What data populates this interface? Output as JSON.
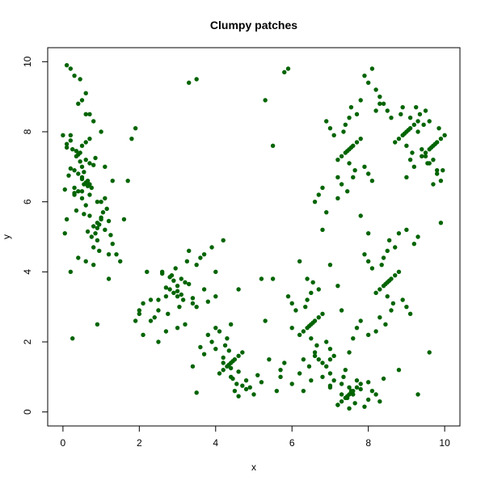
{
  "chart_data": {
    "type": "scatter",
    "title": "Clumpy patches",
    "xlabel": "x",
    "ylabel": "y",
    "xlim": [
      -0.4,
      10.4
    ],
    "ylim": [
      -0.4,
      10.4
    ],
    "x_ticks": [
      0,
      2,
      4,
      6,
      8,
      10
    ],
    "y_ticks": [
      0,
      2,
      4,
      6,
      8,
      10
    ],
    "grid": false,
    "legend": "none",
    "point_color": "#006400",
    "series": [
      {
        "x": [
          0.5,
          0.3,
          0.7,
          0.4,
          0.6,
          0.2,
          0.8,
          0.5,
          0.35,
          0.65,
          0.45,
          0.55,
          0.25,
          0.75,
          0.5,
          0.4,
          0.6,
          0.3,
          0.7,
          0.5,
          0.2,
          0.9,
          0.55,
          0.45,
          0.15,
          0.85,
          0.5,
          0.4,
          0.6,
          0.35,
          0.65,
          0.1,
          0.05,
          0.1,
          0.3,
          0.2,
          0.9,
          0.8,
          1.0,
          1.1,
          0.7,
          0.95,
          1.2,
          0.85,
          1.05,
          0.75,
          1.15,
          0.9,
          0.6,
          1.3,
          1.0,
          0.8,
          1.1,
          0.95,
          0.7,
          1.2,
          0.5,
          0.4,
          0.3,
          0.6,
          0.7,
          0.8,
          0.9,
          1.0,
          0.65,
          0.55,
          1.25,
          0.35,
          0.0,
          0.1,
          0.05,
          0.2,
          0.45,
          0.6,
          0.7,
          0.3,
          0.8,
          1.0,
          1.1,
          1.3,
          1.4,
          1.6,
          1.7,
          1.8,
          1.9,
          1.5,
          1.2,
          0.9,
          0.25,
          0.6,
          0.5,
          0.4,
          0.2,
          0.1,
          3.0,
          2.8,
          3.2,
          2.9,
          3.1,
          2.7,
          3.3,
          3.0,
          2.85,
          3.15,
          2.6,
          3.4,
          2.95,
          3.05,
          3.5,
          2.5,
          3.25,
          2.75,
          3.6,
          2.4,
          3.0,
          2.9,
          3.1,
          2.3,
          3.7,
          3.2,
          2.8,
          3.8,
          2.2,
          3.4,
          2.6,
          3.0,
          3.3,
          2.7,
          3.9,
          2.1,
          3.5,
          2.5,
          4.0,
          2.0,
          4.4,
          4.3,
          4.5,
          4.2,
          4.6,
          4.35,
          4.45,
          4.1,
          4.7,
          4.4,
          4.0,
          4.8,
          4.25,
          4.55,
          3.9,
          4.9,
          4.3,
          4.5,
          3.8,
          5.0,
          4.4,
          4.2,
          4.6,
          3.7,
          5.1,
          4.35,
          4.45,
          3.6,
          5.2,
          4.1,
          4.7,
          4.0,
          4.8,
          4.4,
          3.5,
          5.3,
          4.6,
          4.2,
          3.4,
          5.4,
          6.5,
          6.4,
          6.6,
          6.3,
          6.7,
          6.45,
          6.55,
          6.2,
          6.8,
          6.5,
          6.1,
          6.9,
          6.35,
          6.65,
          6.0,
          7.0,
          6.4,
          6.6,
          5.9,
          7.1,
          6.5,
          6.3,
          6.7,
          5.8,
          7.2,
          6.45,
          6.55,
          5.7,
          6.2,
          6.8,
          6.5,
          6.0,
          7.0,
          5.6,
          7.3,
          5.5,
          7.5,
          7.4,
          7.6,
          7.3,
          7.7,
          7.45,
          7.55,
          7.2,
          7.8,
          7.5,
          7.1,
          7.9,
          7.35,
          7.65,
          7.0,
          8.0,
          7.4,
          7.6,
          6.9,
          8.1,
          7.5,
          7.3,
          7.7,
          6.8,
          8.2,
          7.45,
          7.55,
          6.7,
          8.3,
          7.2,
          7.8,
          7.0,
          8.0,
          6.6,
          8.4,
          7.5,
          8.5,
          8.4,
          8.6,
          8.3,
          8.7,
          8.45,
          8.55,
          8.2,
          8.8,
          8.5,
          8.1,
          8.9,
          8.35,
          8.65,
          8.0,
          9.0,
          8.4,
          8.6,
          7.9,
          9.1,
          8.5,
          8.3,
          8.7,
          7.8,
          9.2,
          8.45,
          8.55,
          7.7,
          9.3,
          8.2,
          8.8,
          8.0,
          9.0,
          7.6,
          7.5,
          7.4,
          7.6,
          7.3,
          7.7,
          7.45,
          7.55,
          7.2,
          7.8,
          7.5,
          7.1,
          7.9,
          7.35,
          7.65,
          7.0,
          8.0,
          7.4,
          7.6,
          6.9,
          8.1,
          7.5,
          7.3,
          7.7,
          6.8,
          8.2,
          7.45,
          7.55,
          6.7,
          8.3,
          7.2,
          7.8,
          6.6,
          9.0,
          8.9,
          9.1,
          8.8,
          9.2,
          8.95,
          9.05,
          8.7,
          9.3,
          9.0,
          8.6,
          9.4,
          8.85,
          9.15,
          8.5,
          9.5,
          8.9,
          9.1,
          8.4,
          9.6,
          8.3,
          8.2,
          8.0,
          7.9,
          8.1,
          9.7,
          9.6,
          9.8,
          9.5,
          9.9,
          9.65,
          9.75,
          9.4,
          10.0,
          9.7,
          9.3,
          9.55,
          9.85,
          9.2,
          9.45,
          9.95,
          9.6,
          9.8,
          9.1,
          9.0,
          9.35,
          9.9,
          9.5,
          9.7,
          9.25,
          5.3,
          5.8,
          5.5,
          5.9,
          3.3,
          3.5,
          3.7,
          4.0,
          4.2,
          4.6,
          5.2,
          6.2,
          6.0,
          5.7,
          6.3,
          6.4,
          6.8,
          7.0,
          6.9,
          7.2,
          7.0,
          7.3,
          7.8,
          8.0,
          8.8,
          9.3,
          9.6,
          9.8,
          9.9,
          2.5,
          2.7,
          2.1,
          1.9,
          2.3,
          2.0
        ],
        "y": [
          7.0,
          6.9,
          7.1,
          6.8,
          7.2,
          6.95,
          7.05,
          6.7,
          7.3,
          6.6,
          7.4,
          6.5,
          7.5,
          6.4,
          7.6,
          6.3,
          7.7,
          6.2,
          7.8,
          6.1,
          7.9,
          6.0,
          6.85,
          7.15,
          6.75,
          7.25,
          6.65,
          7.35,
          6.55,
          7.45,
          6.45,
          7.55,
          6.35,
          7.65,
          6.25,
          7.75,
          5.4,
          5.3,
          5.5,
          5.2,
          5.6,
          5.35,
          5.45,
          5.1,
          5.7,
          5.0,
          5.8,
          4.9,
          5.9,
          4.8,
          6.0,
          4.7,
          6.1,
          4.6,
          6.2,
          4.5,
          6.3,
          4.4,
          6.4,
          4.3,
          6.5,
          4.2,
          5.25,
          5.55,
          5.15,
          5.65,
          5.05,
          5.75,
          7.9,
          5.5,
          5.1,
          4.0,
          9.5,
          8.5,
          8.5,
          9.6,
          8.3,
          8.0,
          7.0,
          6.6,
          4.5,
          5.5,
          6.6,
          7.8,
          8.1,
          4.3,
          3.8,
          2.5,
          2.1,
          9.1,
          8.9,
          8.8,
          9.8,
          9.9,
          3.6,
          3.5,
          3.7,
          3.4,
          3.8,
          3.55,
          3.65,
          3.3,
          3.9,
          3.2,
          4.0,
          3.1,
          4.1,
          3.0,
          4.2,
          2.9,
          4.3,
          2.8,
          4.4,
          2.7,
          3.45,
          3.75,
          3.35,
          2.6,
          4.5,
          2.5,
          3.85,
          3.15,
          4.0,
          3.25,
          3.95,
          2.4,
          4.6,
          2.3,
          4.7,
          2.2,
          3.0,
          2.0,
          3.3,
          2.8,
          1.4,
          1.3,
          1.5,
          1.2,
          1.6,
          1.35,
          1.45,
          1.1,
          1.7,
          1.0,
          1.8,
          0.9,
          1.9,
          0.8,
          2.0,
          0.7,
          2.1,
          0.6,
          2.2,
          0.5,
          1.25,
          1.55,
          1.15,
          1.65,
          1.05,
          1.75,
          0.95,
          1.85,
          0.85,
          2.3,
          0.75,
          2.4,
          0.65,
          2.5,
          0.55,
          2.6,
          0.45,
          1.4,
          1.3,
          1.5,
          2.5,
          2.4,
          2.6,
          2.3,
          2.7,
          2.45,
          2.55,
          2.2,
          2.8,
          2.1,
          2.9,
          2.0,
          3.0,
          1.9,
          3.1,
          1.8,
          3.2,
          1.7,
          3.3,
          1.6,
          3.4,
          1.5,
          3.5,
          1.4,
          3.6,
          1.3,
          3.7,
          1.2,
          1.1,
          1.0,
          0.9,
          0.8,
          0.7,
          0.6,
          0.5,
          3.8,
          0.5,
          0.4,
          0.6,
          0.3,
          0.7,
          0.45,
          0.55,
          0.2,
          0.8,
          0.1,
          0.9,
          0.15,
          1.0,
          0.25,
          1.1,
          0.35,
          1.2,
          0.5,
          1.3,
          0.6,
          0.7,
          0.8,
          0.9,
          1.4,
          0.5,
          0.4,
          0.6,
          1.5,
          0.3,
          0.2,
          0.65,
          0.75,
          0.85,
          1.6,
          0.95,
          1.7,
          3.7,
          3.6,
          3.8,
          3.5,
          3.9,
          3.65,
          3.75,
          3.4,
          4.0,
          3.3,
          4.1,
          3.2,
          4.2,
          3.1,
          4.3,
          3.0,
          4.4,
          2.9,
          4.5,
          2.8,
          4.6,
          2.7,
          4.7,
          2.6,
          4.8,
          2.5,
          4.9,
          2.4,
          5.0,
          2.3,
          5.1,
          2.2,
          5.2,
          2.1,
          7.5,
          7.4,
          7.6,
          7.3,
          7.7,
          7.45,
          7.55,
          7.2,
          7.8,
          7.1,
          7.9,
          7.0,
          8.0,
          6.9,
          8.1,
          6.8,
          8.2,
          6.7,
          8.3,
          6.6,
          8.4,
          6.5,
          8.5,
          6.4,
          8.6,
          6.3,
          8.7,
          6.2,
          8.8,
          6.1,
          8.9,
          6.0,
          8.0,
          7.9,
          8.1,
          7.8,
          8.2,
          7.95,
          8.05,
          7.7,
          8.3,
          7.6,
          8.4,
          7.5,
          8.5,
          7.4,
          8.6,
          7.3,
          8.7,
          7.2,
          8.8,
          7.1,
          9.0,
          9.2,
          9.4,
          9.6,
          9.8,
          7.6,
          7.5,
          7.7,
          7.4,
          7.8,
          7.55,
          7.65,
          7.3,
          7.9,
          7.2,
          8.0,
          7.1,
          8.1,
          7.0,
          8.2,
          6.9,
          8.3,
          6.8,
          8.4,
          6.7,
          8.5,
          6.6,
          8.6,
          6.5,
          8.7,
          8.9,
          9.7,
          7.6,
          9.8,
          9.4,
          9.5,
          3.5,
          4.0,
          4.9,
          3.5,
          3.8,
          4.3,
          2.4,
          1.0,
          0.6,
          3.8,
          5.2,
          4.2,
          5.7,
          6.7,
          1.5,
          2.9,
          5.6,
          5.1,
          1.2,
          0.5,
          1.7,
          6.9,
          5.4,
          3.2,
          3.3,
          3.1,
          2.6,
          3.2,
          2.9
        ]
      }
    ]
  }
}
